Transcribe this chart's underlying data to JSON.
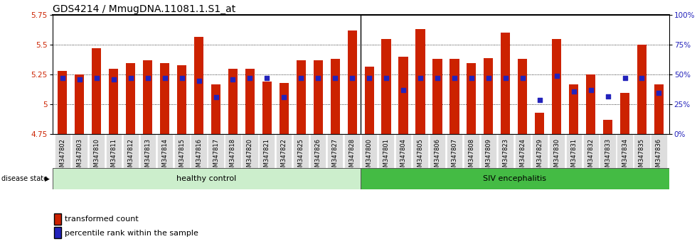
{
  "title": "GDS4214 / MmugDNA.11081.1.S1_at",
  "categories": [
    "GSM347802",
    "GSM347803",
    "GSM347810",
    "GSM347811",
    "GSM347812",
    "GSM347813",
    "GSM347814",
    "GSM347815",
    "GSM347816",
    "GSM347817",
    "GSM347818",
    "GSM347820",
    "GSM347821",
    "GSM347822",
    "GSM347825",
    "GSM347826",
    "GSM347827",
    "GSM347828",
    "GSM347800",
    "GSM347801",
    "GSM347804",
    "GSM347805",
    "GSM347806",
    "GSM347807",
    "GSM347808",
    "GSM347809",
    "GSM347823",
    "GSM347824",
    "GSM347829",
    "GSM347830",
    "GSM347831",
    "GSM347832",
    "GSM347833",
    "GSM347834",
    "GSM347835",
    "GSM347836"
  ],
  "bar_vals": [
    5.28,
    5.25,
    5.47,
    5.3,
    5.35,
    5.37,
    5.35,
    5.33,
    5.57,
    5.17,
    5.3,
    5.3,
    5.19,
    5.18,
    5.37,
    5.37,
    5.38,
    5.62,
    5.32,
    5.55,
    5.4,
    5.63,
    5.38,
    5.38,
    5.35,
    5.39,
    5.6,
    5.38,
    4.93,
    5.55,
    5.17,
    5.25,
    4.87,
    5.1,
    5.5,
    5.17
  ],
  "pct_vals": [
    47,
    46,
    47,
    46,
    47,
    47,
    47,
    47,
    45,
    31,
    46,
    47,
    47,
    31,
    47,
    47,
    47,
    47,
    47,
    47,
    37,
    47,
    47,
    47,
    47,
    47,
    47,
    47,
    29,
    49,
    36,
    37,
    32,
    47,
    47,
    35
  ],
  "healthy_control_count": 18,
  "ybase": 4.75,
  "ytop": 5.75,
  "yticks_left": [
    4.75,
    5.0,
    5.25,
    5.5,
    5.75
  ],
  "ytick_labels_left": [
    "4.75",
    "5",
    "5.25",
    "5.5",
    "5.75"
  ],
  "yticks_right": [
    0,
    25,
    50,
    75,
    100
  ],
  "bar_color": "#cc2200",
  "pct_color": "#2222bb",
  "healthy_color": "#cceecc",
  "siv_color": "#44bb44",
  "title_fontsize": 10,
  "axis_tick_fontsize": 7.5,
  "xtick_fontsize": 6.0,
  "label_fontsize": 8
}
